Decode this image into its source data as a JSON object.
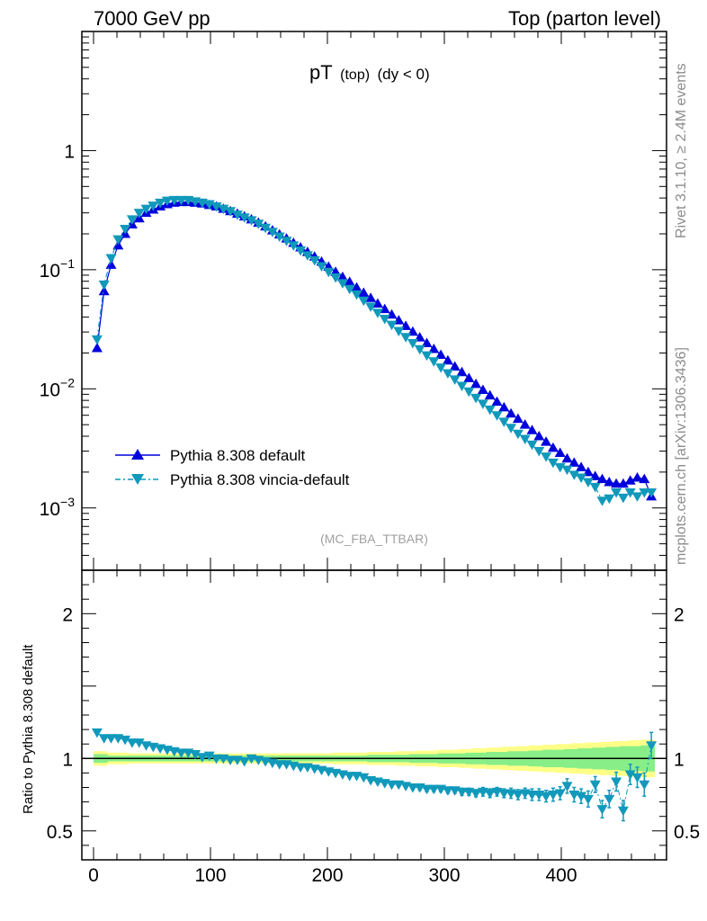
{
  "header": {
    "left": "7000 GeV pp",
    "right": "Top (parton level)"
  },
  "side_labels": {
    "upper": "Rivet 3.1.10, ≥ 2.4M events",
    "lower": "mcplots.cern.ch [arXiv:1306.3436]"
  },
  "colors": {
    "default": "#0000dd",
    "vincia": "#1199bb",
    "band_outer": "#ffff88",
    "band_inner": "#88ee88"
  },
  "chart_data": [
    {
      "type": "line",
      "title_main": "pT",
      "title_sub": "(top)",
      "title_cut": "(dy < 0)",
      "watermark": "(MC_FBA_TTBAR)",
      "xlim": [
        -10,
        490
      ],
      "ylim": [
        0.0003,
        10
      ],
      "yscale": "log",
      "ytick_labels": [
        {
          "mant": "1",
          "exp": "",
          "value": 1
        },
        {
          "mant": "10",
          "exp": "−1",
          "value": 0.1
        },
        {
          "mant": "10",
          "exp": "−2",
          "value": 0.01
        },
        {
          "mant": "10",
          "exp": "−3",
          "value": 0.001
        }
      ],
      "legend_position": "lower-left",
      "x": [
        3,
        9,
        15,
        21,
        27,
        33,
        39,
        45,
        51,
        57,
        63,
        69,
        75,
        81,
        87,
        93,
        99,
        105,
        111,
        117,
        123,
        129,
        135,
        141,
        147,
        153,
        159,
        165,
        171,
        177,
        183,
        189,
        195,
        201,
        207,
        213,
        219,
        225,
        231,
        237,
        243,
        249,
        255,
        261,
        267,
        273,
        279,
        285,
        291,
        297,
        303,
        309,
        315,
        321,
        327,
        333,
        339,
        345,
        351,
        357,
        363,
        369,
        375,
        381,
        387,
        393,
        399,
        405,
        411,
        417,
        423,
        429,
        435,
        441,
        447,
        453,
        459,
        465,
        471,
        477
      ],
      "series": [
        {
          "name": "Pythia 8.308 default",
          "marker": "triangle-up",
          "values": [
            0.022,
            0.066,
            0.11,
            0.16,
            0.2,
            0.24,
            0.27,
            0.3,
            0.32,
            0.34,
            0.355,
            0.365,
            0.37,
            0.37,
            0.365,
            0.36,
            0.35,
            0.34,
            0.325,
            0.31,
            0.295,
            0.28,
            0.265,
            0.248,
            0.231,
            0.214,
            0.198,
            0.183,
            0.168,
            0.154,
            0.141,
            0.129,
            0.117,
            0.106,
            0.096,
            0.087,
            0.079,
            0.071,
            0.064,
            0.058,
            0.052,
            0.0467,
            0.042,
            0.0376,
            0.0337,
            0.0302,
            0.027,
            0.0242,
            0.0216,
            0.0193,
            0.0173,
            0.0154,
            0.0138,
            0.0123,
            0.011,
            0.0098,
            0.0088,
            0.0078,
            0.007,
            0.0062,
            0.0056,
            0.005,
            0.0045,
            0.004,
            0.0036,
            0.0032,
            0.0029,
            0.0026,
            0.0024,
            0.0022,
            0.002,
            0.00185,
            0.00175,
            0.00165,
            0.0016,
            0.0016,
            0.0017,
            0.0018,
            0.00175,
            0.00125
          ]
        },
        {
          "name": "Pythia 8.308 vincia-default",
          "marker": "triangle-down",
          "values": [
            0.026,
            0.075,
            0.125,
            0.18,
            0.22,
            0.265,
            0.3,
            0.325,
            0.345,
            0.365,
            0.38,
            0.385,
            0.385,
            0.385,
            0.375,
            0.365,
            0.355,
            0.34,
            0.325,
            0.31,
            0.29,
            0.275,
            0.26,
            0.243,
            0.225,
            0.208,
            0.19,
            0.175,
            0.16,
            0.145,
            0.132,
            0.12,
            0.107,
            0.096,
            0.086,
            0.077,
            0.069,
            0.062,
            0.055,
            0.049,
            0.0435,
            0.0387,
            0.0345,
            0.0306,
            0.0272,
            0.0242,
            0.0215,
            0.0191,
            0.017,
            0.0151,
            0.0135,
            0.012,
            0.0106,
            0.0095,
            0.0084,
            0.0075,
            0.0067,
            0.006,
            0.0053,
            0.0047,
            0.0042,
            0.0038,
            0.0034,
            0.003,
            0.0027,
            0.0024,
            0.0022,
            0.0021,
            0.0019,
            0.0018,
            0.00165,
            0.0015,
            0.00115,
            0.0012,
            0.00135,
            0.00122,
            0.00135,
            0.00125,
            0.00135,
            0.00135
          ]
        }
      ]
    },
    {
      "type": "line",
      "ylabel": "Ratio to Pythia 8.308 default",
      "xlim": [
        -10,
        490
      ],
      "ylim": [
        0.3,
        2.3
      ],
      "ytick_labels": [
        {
          "text": "2",
          "value": 2
        },
        {
          "text": "1",
          "value": 1
        },
        {
          "text": "0.5",
          "value": 0.5
        }
      ],
      "xtick_labels": [
        {
          "text": "0",
          "value": 0
        },
        {
          "text": "100",
          "value": 100
        },
        {
          "text": "200",
          "value": 200
        },
        {
          "text": "300",
          "value": 300
        },
        {
          "text": "400",
          "value": 400
        }
      ],
      "reference": 1,
      "x": [
        3,
        9,
        15,
        21,
        27,
        33,
        39,
        45,
        51,
        57,
        63,
        69,
        75,
        81,
        87,
        93,
        99,
        105,
        111,
        117,
        123,
        129,
        135,
        141,
        147,
        153,
        159,
        165,
        171,
        177,
        183,
        189,
        195,
        201,
        207,
        213,
        219,
        225,
        231,
        237,
        243,
        249,
        255,
        261,
        267,
        273,
        279,
        285,
        291,
        297,
        303,
        309,
        315,
        321,
        327,
        333,
        339,
        345,
        351,
        357,
        363,
        369,
        375,
        381,
        387,
        393,
        399,
        405,
        411,
        417,
        423,
        429,
        435,
        441,
        447,
        453,
        459,
        465,
        471,
        477
      ],
      "ratio": [
        1.18,
        1.14,
        1.14,
        1.14,
        1.13,
        1.11,
        1.11,
        1.09,
        1.08,
        1.07,
        1.06,
        1.05,
        1.04,
        1.04,
        1.03,
        1.01,
        1.02,
        1.0,
        1.0,
        0.99,
        0.99,
        0.98,
        1.0,
        0.99,
        0.98,
        0.97,
        0.96,
        0.96,
        0.95,
        0.94,
        0.94,
        0.93,
        0.92,
        0.91,
        0.9,
        0.89,
        0.88,
        0.88,
        0.87,
        0.85,
        0.84,
        0.83,
        0.82,
        0.82,
        0.81,
        0.8,
        0.8,
        0.79,
        0.79,
        0.79,
        0.78,
        0.78,
        0.77,
        0.77,
        0.76,
        0.77,
        0.76,
        0.77,
        0.76,
        0.76,
        0.75,
        0.76,
        0.75,
        0.75,
        0.74,
        0.75,
        0.76,
        0.81,
        0.75,
        0.74,
        0.72,
        0.82,
        0.65,
        0.72,
        0.84,
        0.64,
        0.89,
        0.87,
        0.82,
        1.09
      ],
      "ratio_err": [
        0.01,
        0.01,
        0.01,
        0.01,
        0.01,
        0.01,
        0.01,
        0.01,
        0.01,
        0.01,
        0.01,
        0.01,
        0.01,
        0.01,
        0.01,
        0.01,
        0.01,
        0.01,
        0.01,
        0.01,
        0.01,
        0.01,
        0.01,
        0.01,
        0.01,
        0.01,
        0.01,
        0.01,
        0.01,
        0.01,
        0.01,
        0.01,
        0.01,
        0.01,
        0.01,
        0.01,
        0.01,
        0.01,
        0.01,
        0.015,
        0.015,
        0.015,
        0.015,
        0.015,
        0.015,
        0.015,
        0.02,
        0.02,
        0.02,
        0.02,
        0.02,
        0.02,
        0.025,
        0.025,
        0.025,
        0.03,
        0.03,
        0.03,
        0.03,
        0.035,
        0.035,
        0.035,
        0.04,
        0.04,
        0.04,
        0.045,
        0.045,
        0.05,
        0.05,
        0.05,
        0.055,
        0.055,
        0.06,
        0.06,
        0.065,
        0.07,
        0.07,
        0.07,
        0.08,
        0.09
      ],
      "band_inner_halfwidth": [
        0.03,
        0.03,
        0.02,
        0.02,
        0.02,
        0.02,
        0.02,
        0.02,
        0.02,
        0.02,
        0.02,
        0.02,
        0.02,
        0.02,
        0.02,
        0.02,
        0.02,
        0.02,
        0.02,
        0.02,
        0.02,
        0.02,
        0.02,
        0.02,
        0.02,
        0.02,
        0.02,
        0.02,
        0.02,
        0.02,
        0.02,
        0.02,
        0.02,
        0.02,
        0.02,
        0.02,
        0.02,
        0.02,
        0.02,
        0.025,
        0.025,
        0.025,
        0.025,
        0.025,
        0.025,
        0.03,
        0.03,
        0.03,
        0.03,
        0.035,
        0.035,
        0.035,
        0.035,
        0.04,
        0.04,
        0.04,
        0.045,
        0.045,
        0.045,
        0.05,
        0.05,
        0.05,
        0.055,
        0.055,
        0.06,
        0.06,
        0.06,
        0.065,
        0.065,
        0.07,
        0.07,
        0.075,
        0.075,
        0.08,
        0.08,
        0.085,
        0.085,
        0.085,
        0.09,
        0.09
      ],
      "band_outer_halfwidth": [
        0.05,
        0.05,
        0.04,
        0.04,
        0.04,
        0.035,
        0.035,
        0.035,
        0.035,
        0.035,
        0.035,
        0.035,
        0.035,
        0.035,
        0.035,
        0.035,
        0.035,
        0.035,
        0.035,
        0.035,
        0.035,
        0.035,
        0.035,
        0.035,
        0.035,
        0.035,
        0.035,
        0.035,
        0.035,
        0.035,
        0.035,
        0.035,
        0.035,
        0.035,
        0.04,
        0.04,
        0.04,
        0.04,
        0.04,
        0.045,
        0.045,
        0.045,
        0.045,
        0.05,
        0.05,
        0.05,
        0.055,
        0.055,
        0.055,
        0.06,
        0.06,
        0.06,
        0.065,
        0.065,
        0.07,
        0.07,
        0.075,
        0.075,
        0.08,
        0.08,
        0.085,
        0.085,
        0.09,
        0.09,
        0.095,
        0.095,
        0.1,
        0.1,
        0.105,
        0.105,
        0.11,
        0.11,
        0.115,
        0.115,
        0.12,
        0.12,
        0.125,
        0.125,
        0.13,
        0.13
      ]
    }
  ]
}
